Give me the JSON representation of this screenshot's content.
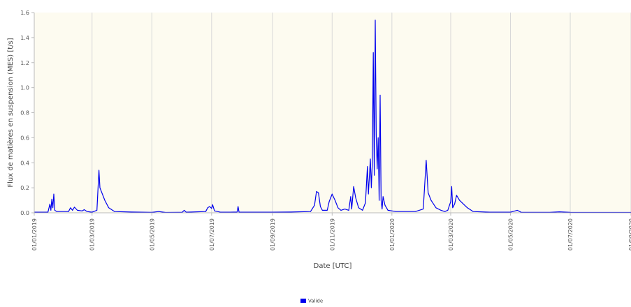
{
  "chart_data": {
    "type": "line",
    "title": "",
    "xlabel": "Date [UTC]",
    "ylabel": "Flux de matières en suspension (MES) [t/s]",
    "ylim": [
      0,
      1.6
    ],
    "xlim": [
      "2019-01-01",
      "2020-09-01"
    ],
    "yticks": [
      "0.0",
      "0.2",
      "0.4",
      "0.6",
      "0.8",
      "1.0",
      "1.2",
      "1.4",
      "1.6"
    ],
    "xticks": [
      {
        "date": "2019-01-01",
        "label": "01/01/2019"
      },
      {
        "date": "2019-03-01",
        "label": "01/03/2019"
      },
      {
        "date": "2019-05-01",
        "label": "01/05/2019"
      },
      {
        "date": "2019-07-01",
        "label": "01/07/2019"
      },
      {
        "date": "2019-09-01",
        "label": "01/09/2019"
      },
      {
        "date": "2019-11-01",
        "label": "01/11/2019"
      },
      {
        "date": "2020-01-01",
        "label": "01/01/2020"
      },
      {
        "date": "2020-03-01",
        "label": "01/03/2020"
      },
      {
        "date": "2020-05-01",
        "label": "01/05/2020"
      },
      {
        "date": "2020-07-01",
        "label": "01/07/2020"
      },
      {
        "date": "2020-09-01",
        "label": "01/09/2020"
      }
    ],
    "grid": "vertical",
    "background": "#fdfbf0",
    "legend": {
      "placement": "bottom-center",
      "entries": [
        "Valide"
      ]
    },
    "series": [
      {
        "name": "Valide",
        "color": "#0000ee",
        "points": [
          [
            "2019-01-01",
            0.005
          ],
          [
            "2019-01-15",
            0.005
          ],
          [
            "2019-01-17",
            0.07
          ],
          [
            "2019-01-18",
            0.02
          ],
          [
            "2019-01-19",
            0.11
          ],
          [
            "2019-01-20",
            0.04
          ],
          [
            "2019-01-21",
            0.15
          ],
          [
            "2019-01-22",
            0.02
          ],
          [
            "2019-01-24",
            0.01
          ],
          [
            "2019-02-05",
            0.01
          ],
          [
            "2019-02-07",
            0.04
          ],
          [
            "2019-02-09",
            0.02
          ],
          [
            "2019-02-11",
            0.045
          ],
          [
            "2019-02-14",
            0.02
          ],
          [
            "2019-02-19",
            0.015
          ],
          [
            "2019-02-21",
            0.025
          ],
          [
            "2019-02-24",
            0.01
          ],
          [
            "2019-03-01",
            0.005
          ],
          [
            "2019-03-06",
            0.02
          ],
          [
            "2019-03-08",
            0.34
          ],
          [
            "2019-03-09",
            0.2
          ],
          [
            "2019-03-11",
            0.16
          ],
          [
            "2019-03-14",
            0.1
          ],
          [
            "2019-03-18",
            0.04
          ],
          [
            "2019-03-24",
            0.01
          ],
          [
            "2019-04-10",
            0.006
          ],
          [
            "2019-05-01",
            0.004
          ],
          [
            "2019-05-08",
            0.01
          ],
          [
            "2019-05-15",
            0.003
          ],
          [
            "2019-06-01",
            0.004
          ],
          [
            "2019-06-03",
            0.02
          ],
          [
            "2019-06-05",
            0.005
          ],
          [
            "2019-06-25",
            0.01
          ],
          [
            "2019-06-27",
            0.04
          ],
          [
            "2019-06-29",
            0.05
          ],
          [
            "2019-07-01",
            0.035
          ],
          [
            "2019-07-02",
            0.065
          ],
          [
            "2019-07-04",
            0.015
          ],
          [
            "2019-07-10",
            0.005
          ],
          [
            "2019-07-20",
            0.005
          ],
          [
            "2019-07-27",
            0.006
          ],
          [
            "2019-07-28",
            0.05
          ],
          [
            "2019-07-29",
            0.005
          ],
          [
            "2019-08-01",
            0.005
          ],
          [
            "2019-08-15",
            0.005
          ],
          [
            "2019-09-01",
            0.005
          ],
          [
            "2019-09-20",
            0.006
          ],
          [
            "2019-10-10",
            0.01
          ],
          [
            "2019-10-14",
            0.06
          ],
          [
            "2019-10-16",
            0.17
          ],
          [
            "2019-10-18",
            0.16
          ],
          [
            "2019-10-20",
            0.05
          ],
          [
            "2019-10-22",
            0.02
          ],
          [
            "2019-10-27",
            0.02
          ],
          [
            "2019-10-29",
            0.09
          ],
          [
            "2019-11-01",
            0.15
          ],
          [
            "2019-11-04",
            0.1
          ],
          [
            "2019-11-07",
            0.04
          ],
          [
            "2019-11-10",
            0.02
          ],
          [
            "2019-11-14",
            0.03
          ],
          [
            "2019-11-18",
            0.02
          ],
          [
            "2019-11-20",
            0.13
          ],
          [
            "2019-11-21",
            0.03
          ],
          [
            "2019-11-23",
            0.21
          ],
          [
            "2019-11-25",
            0.12
          ],
          [
            "2019-11-28",
            0.04
          ],
          [
            "2019-12-02",
            0.02
          ],
          [
            "2019-12-05",
            0.08
          ],
          [
            "2019-12-07",
            0.37
          ],
          [
            "2019-12-08",
            0.15
          ],
          [
            "2019-12-10",
            0.43
          ],
          [
            "2019-12-11",
            0.2
          ],
          [
            "2019-12-12",
            0.4
          ],
          [
            "2019-12-13",
            1.28
          ],
          [
            "2019-12-14",
            0.3
          ],
          [
            "2019-12-15",
            1.54
          ],
          [
            "2019-12-16",
            0.62
          ],
          [
            "2019-12-17",
            0.35
          ],
          [
            "2019-12-18",
            0.6
          ],
          [
            "2019-12-19",
            0.1
          ],
          [
            "2019-12-20",
            0.94
          ],
          [
            "2019-12-21",
            0.1
          ],
          [
            "2019-12-22",
            0.03
          ],
          [
            "2019-12-23",
            0.13
          ],
          [
            "2019-12-25",
            0.06
          ],
          [
            "2019-12-28",
            0.02
          ],
          [
            "2020-01-05",
            0.01
          ],
          [
            "2020-01-15",
            0.01
          ],
          [
            "2020-01-25",
            0.01
          ],
          [
            "2020-02-02",
            0.03
          ],
          [
            "2020-02-05",
            0.42
          ],
          [
            "2020-02-07",
            0.16
          ],
          [
            "2020-02-10",
            0.1
          ],
          [
            "2020-02-15",
            0.04
          ],
          [
            "2020-02-20",
            0.02
          ],
          [
            "2020-02-24",
            0.01
          ],
          [
            "2020-02-27",
            0.02
          ],
          [
            "2020-03-01",
            0.09
          ],
          [
            "2020-03-02",
            0.21
          ],
          [
            "2020-03-03",
            0.04
          ],
          [
            "2020-03-05",
            0.07
          ],
          [
            "2020-03-07",
            0.14
          ],
          [
            "2020-03-10",
            0.1
          ],
          [
            "2020-03-14",
            0.07
          ],
          [
            "2020-03-18",
            0.04
          ],
          [
            "2020-03-24",
            0.01
          ],
          [
            "2020-04-10",
            0.005
          ],
          [
            "2020-05-01",
            0.005
          ],
          [
            "2020-05-08",
            0.02
          ],
          [
            "2020-05-12",
            0.004
          ],
          [
            "2020-06-10",
            0.004
          ],
          [
            "2020-06-20",
            0.008
          ],
          [
            "2020-07-01",
            0.004
          ],
          [
            "2020-08-01",
            0.003
          ],
          [
            "2020-09-01",
            0.003
          ]
        ]
      }
    ]
  }
}
